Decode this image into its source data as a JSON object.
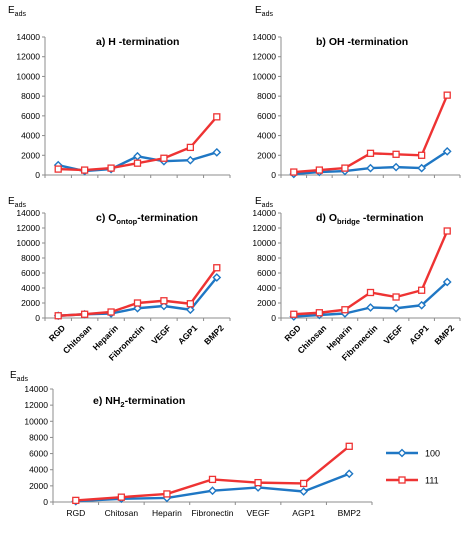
{
  "chart_data": [
    {
      "type": "line",
      "panel": "a",
      "title": "a) H -termination",
      "ylabel": "E",
      "ylabel_sub": "ads",
      "categories": [
        "RGD",
        "Chitosan",
        "Heparin",
        "Fibronectin",
        "VEGF",
        "AGP1",
        "BMP2"
      ],
      "ylim": [
        0,
        14000
      ],
      "yticks": [
        0,
        2000,
        4000,
        6000,
        8000,
        10000,
        12000,
        14000
      ],
      "show_category_labels": false,
      "series": [
        {
          "name": "100",
          "values": [
            1000,
            400,
            600,
            1900,
            1400,
            1500,
            2300
          ]
        },
        {
          "name": "111",
          "values": [
            600,
            500,
            700,
            1200,
            1700,
            2800,
            5900
          ]
        }
      ]
    },
    {
      "type": "line",
      "panel": "b",
      "title": "b) OH -termination",
      "ylabel": "E",
      "ylabel_sub": "ads",
      "categories": [
        "RGD",
        "Chitosan",
        "Heparin",
        "Fibronectin",
        "VEGF",
        "AGP1",
        "BMP2"
      ],
      "ylim": [
        0,
        14000
      ],
      "yticks": [
        0,
        2000,
        4000,
        6000,
        8000,
        10000,
        12000,
        14000
      ],
      "show_category_labels": false,
      "series": [
        {
          "name": "100",
          "values": [
            100,
            300,
            400,
            700,
            800,
            700,
            2400
          ]
        },
        {
          "name": "111",
          "values": [
            300,
            500,
            700,
            2200,
            2100,
            2000,
            8100
          ]
        }
      ]
    },
    {
      "type": "line",
      "panel": "c",
      "title_prefix": "c) O",
      "title_sub": "ontop",
      "title_suffix": "-termination",
      "ylabel": "E",
      "ylabel_sub": "ads",
      "categories": [
        "RGD",
        "Chitosan",
        "Heparin",
        "Fibronectin",
        "VEGF",
        "AGP1",
        "BMP2"
      ],
      "ylim": [
        0,
        14000
      ],
      "yticks": [
        0,
        2000,
        4000,
        6000,
        8000,
        10000,
        12000,
        14000
      ],
      "show_category_labels": true,
      "series": [
        {
          "name": "100",
          "values": [
            300,
            500,
            600,
            1300,
            1600,
            1100,
            5400
          ]
        },
        {
          "name": "111",
          "values": [
            300,
            500,
            800,
            2000,
            2300,
            1900,
            6700
          ]
        }
      ]
    },
    {
      "type": "line",
      "panel": "d",
      "title_prefix": "d) O",
      "title_sub": "bridge",
      "title_suffix": " -termination",
      "ylabel": "E",
      "ylabel_sub": "ads",
      "categories": [
        "RGD",
        "Chitosan",
        "Heparin",
        "Fibronectin",
        "VEGF",
        "AGP1",
        "BMP2"
      ],
      "ylim": [
        0,
        14000
      ],
      "yticks": [
        0,
        2000,
        4000,
        6000,
        8000,
        10000,
        12000,
        14000
      ],
      "show_category_labels": true,
      "series": [
        {
          "name": "100",
          "values": [
            200,
            400,
            600,
            1400,
            1300,
            1700,
            4800
          ]
        },
        {
          "name": "111",
          "values": [
            500,
            700,
            1100,
            3400,
            2800,
            3700,
            11600
          ]
        }
      ]
    },
    {
      "type": "line",
      "panel": "e",
      "title_prefix": "e) NH",
      "title_sub": "2",
      "title_suffix": "-termination",
      "ylabel": "E",
      "ylabel_sub": "ads",
      "categories": [
        "RGD",
        "Chitosan",
        "Heparin",
        "Fibronectin",
        "VEGF",
        "AGP1",
        "BMP2"
      ],
      "ylim": [
        0,
        14000
      ],
      "yticks": [
        0,
        2000,
        4000,
        6000,
        8000,
        10000,
        12000,
        14000
      ],
      "show_category_labels": true,
      "series": [
        {
          "name": "100",
          "values": [
            100,
            400,
            500,
            1400,
            1800,
            1300,
            3500
          ]
        },
        {
          "name": "111",
          "values": [
            200,
            600,
            1000,
            2800,
            2400,
            2300,
            6900
          ]
        }
      ]
    }
  ],
  "legend": [
    {
      "name": "100",
      "color": "#1f77c4",
      "marker": "diamond"
    },
    {
      "name": "111",
      "color": "#ee3333",
      "marker": "square"
    }
  ],
  "colors": {
    "series_100": "#1f77c4",
    "series_111": "#ee3333",
    "axis": "#8c8c8c"
  }
}
